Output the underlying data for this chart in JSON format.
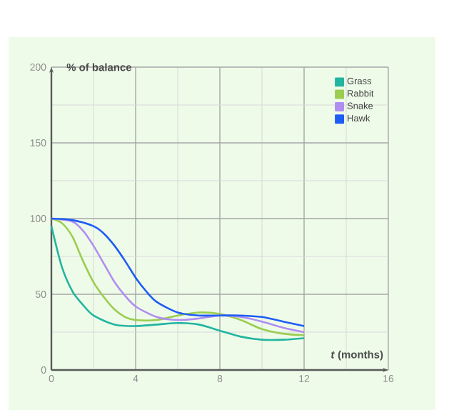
{
  "chart_data": {
    "type": "line",
    "xlabel": "*t* (months)",
    "ylabel": "% of balance",
    "xlim": [
      0,
      16
    ],
    "ylim": [
      0,
      200
    ],
    "xticks": [
      0,
      4,
      8,
      12,
      16
    ],
    "yticks": [
      0,
      50,
      100,
      150,
      200
    ],
    "grid": true,
    "legend": "top right",
    "series": [
      {
        "name": "Grass",
        "color": "#22b5a0",
        "x": [
          0,
          0.5,
          1,
          1.5,
          2,
          3,
          4,
          5,
          6,
          7,
          8,
          9,
          10,
          11,
          12
        ],
        "values": [
          95,
          68,
          52,
          43,
          36,
          30,
          29,
          30,
          31,
          30,
          26,
          22,
          20,
          20,
          21
        ]
      },
      {
        "name": "Rabbit",
        "color": "#9acd50",
        "x": [
          0,
          0.5,
          1,
          1.5,
          2,
          2.5,
          3,
          3.5,
          4,
          5,
          6,
          7,
          8,
          9,
          10,
          11,
          12
        ],
        "values": [
          100,
          97,
          88,
          72,
          58,
          48,
          40,
          35,
          33,
          33,
          36,
          38,
          37,
          33,
          27,
          24,
          23
        ]
      },
      {
        "name": "Snake",
        "color": "#b08ef0",
        "x": [
          0,
          1,
          1.5,
          2,
          2.5,
          3,
          3.5,
          4,
          5,
          6,
          7,
          8,
          9,
          10,
          11,
          12
        ],
        "values": [
          100,
          98,
          92,
          82,
          70,
          58,
          49,
          42,
          35,
          33,
          34,
          36,
          35,
          32,
          28,
          25
        ]
      },
      {
        "name": "Hawk",
        "color": "#1e5cf5",
        "x": [
          0,
          1,
          2,
          2.5,
          3,
          3.5,
          4,
          4.5,
          5,
          6,
          7,
          8,
          9,
          10,
          11,
          12
        ],
        "values": [
          100,
          99,
          95,
          90,
          82,
          72,
          61,
          52,
          45,
          38,
          36,
          36,
          36,
          35,
          32,
          29
        ]
      }
    ]
  }
}
